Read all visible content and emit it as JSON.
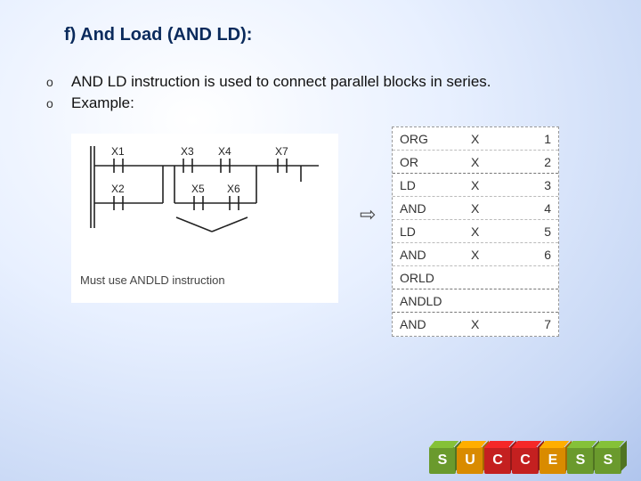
{
  "title": "f) And Load (AND LD):",
  "bullets": [
    "AND LD instruction is used to connect parallel blocks in series.",
    "Example:"
  ],
  "ladder": {
    "top_labels": [
      "X1",
      "X3",
      "X4",
      "X7"
    ],
    "bottom_labels": [
      "X2",
      "X5",
      "X6"
    ],
    "caption": "Must use ANDLD instruction",
    "contact_stroke": "#222222",
    "rail_stroke": "#222222",
    "bg": "#ffffff"
  },
  "arrow_glyph": "⇨",
  "instructions": {
    "columns": [
      "mnemonic",
      "operand",
      "addr"
    ],
    "rows": [
      {
        "mnemonic": "ORG",
        "operand": "X",
        "addr": "1",
        "sep": false
      },
      {
        "mnemonic": "OR",
        "operand": "X",
        "addr": "2",
        "sep": true
      },
      {
        "mnemonic": "LD",
        "operand": "X",
        "addr": "3",
        "sep": false
      },
      {
        "mnemonic": "AND",
        "operand": "X",
        "addr": "4",
        "sep": false
      },
      {
        "mnemonic": "LD",
        "operand": "X",
        "addr": "5",
        "sep": false
      },
      {
        "mnemonic": "AND",
        "operand": "X",
        "addr": "6",
        "sep": false
      },
      {
        "mnemonic": "ORLD",
        "operand": "",
        "addr": "",
        "sep": true
      },
      {
        "mnemonic": "ANDLD",
        "operand": "",
        "addr": "",
        "sep": true
      },
      {
        "mnemonic": "AND",
        "operand": "X",
        "addr": "7",
        "sep": false
      }
    ],
    "border_color": "#999999",
    "text_color": "#333333",
    "bg": "#ffffff"
  },
  "success_blocks": {
    "letters": [
      "S",
      "U",
      "C",
      "C",
      "E",
      "S",
      "S"
    ],
    "colors": [
      "#6a9a2d",
      "#d98b00",
      "#c42020",
      "#c42020",
      "#d98b00",
      "#6a9a2d",
      "#6a9a2d"
    ]
  }
}
